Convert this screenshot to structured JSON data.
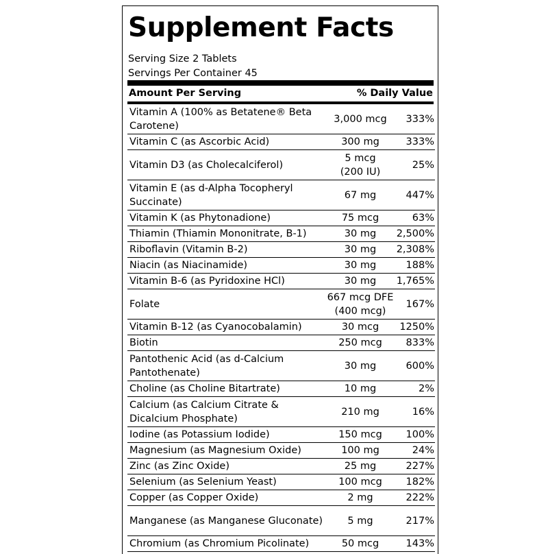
{
  "title": "Supplement Facts",
  "serving_size": "Serving Size 2 Tablets",
  "servings_per_container": "Servings Per Container 45",
  "header": {
    "amount_per_serving": "Amount Per Serving",
    "daily_value": "% Daily Value"
  },
  "rows": [
    {
      "name": "Vitamin A (100% as Betatene® Beta Carotene)",
      "amount": "3,000 mcg",
      "dv": "333%"
    },
    {
      "name": "Vitamin C (as Ascorbic Acid)",
      "amount": "300 mg",
      "dv": "333%"
    },
    {
      "name": "Vitamin D3 (as Cholecalciferol)",
      "amount": "5 mcg (200 IU)",
      "dv": "25%"
    },
    {
      "name": "Vitamin E (as d-Alpha Tocopheryl Succinate)",
      "amount": "67 mg",
      "dv": "447%"
    },
    {
      "name": "Vitamin K (as Phytonadione)",
      "amount": "75 mcg",
      "dv": "63%"
    },
    {
      "name": "Thiamin (Thiamin Mononitrate, B-1)",
      "amount": "30 mg",
      "dv": "2,500%"
    },
    {
      "name": "Riboflavin (Vitamin B-2)",
      "amount": "30 mg",
      "dv": "2,308%"
    },
    {
      "name": "Niacin (as Niacinamide)",
      "amount": "30 mg",
      "dv": "188%"
    },
    {
      "name": "Vitamin B-6 (as Pyridoxine HCl)",
      "amount": "30 mg",
      "dv": "1,765%"
    },
    {
      "name": "Folate",
      "amount": "667 mcg DFE (400 mcg)",
      "dv": "167%"
    },
    {
      "name": "Vitamin B-12 (as Cyanocobalamin)",
      "amount": "30 mcg",
      "dv": "1250%"
    },
    {
      "name": "Biotin",
      "amount": "250 mcg",
      "dv": "833%"
    },
    {
      "name": "Pantothenic Acid (as d-Calcium Pantothenate)",
      "amount": "30 mg",
      "dv": "600%"
    },
    {
      "name": "Choline (as Choline Bitartrate)",
      "amount": "10 mg",
      "dv": "2%"
    },
    {
      "name": "Calcium (as Calcium Citrate & Dicalcium Phosphate)",
      "amount": "210 mg",
      "dv": "16%"
    },
    {
      "name": "Iodine (as Potassium Iodide)",
      "amount": "150 mcg",
      "dv": "100%"
    },
    {
      "name": "Magnesium (as Magnesium Oxide)",
      "amount": "100 mg",
      "dv": "24%"
    },
    {
      "name": "Zinc (as Zinc Oxide)",
      "amount": "25 mg",
      "dv": "227%"
    },
    {
      "name": "Selenium (as Selenium Yeast)",
      "amount": "100 mcg",
      "dv": "182%"
    },
    {
      "name": "Copper (as Copper Oxide)",
      "amount": "2 mg",
      "dv": "222%"
    },
    {
      "name": "Manganese (as Manganese Gluconate)",
      "amount": "5 mg",
      "dv": "217%"
    },
    {
      "name": "Chromium (as Chromium Picolinate)",
      "amount": "50 mcg",
      "dv": "143%"
    }
  ]
}
